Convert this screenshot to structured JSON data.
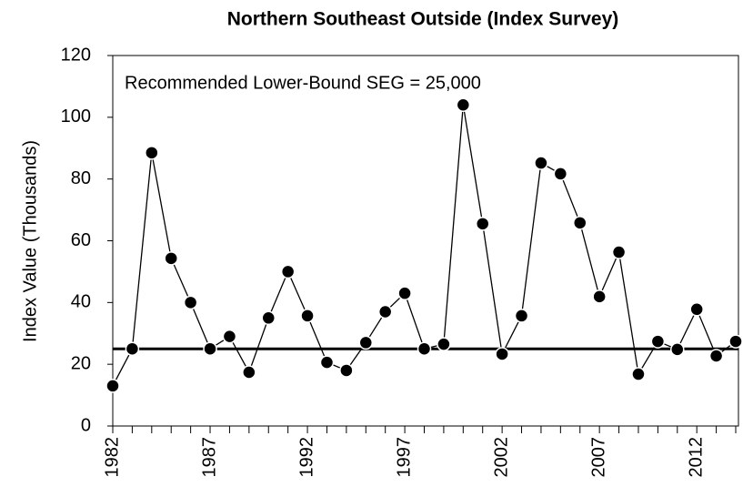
{
  "chart_data": {
    "type": "line",
    "title": "Northern Southeast Outside (Index Survey)",
    "y_label": "Index Value (Thousands)",
    "annotation": "Recommended Lower-Bound SEG = 25,000",
    "reference_line": 25,
    "x": [
      1982,
      1983,
      1984,
      1985,
      1986,
      1987,
      1988,
      1989,
      1990,
      1991,
      1992,
      1993,
      1994,
      1995,
      1996,
      1997,
      1998,
      1999,
      2000,
      2001,
      2002,
      2003,
      2004,
      2005,
      2006,
      2007,
      2008,
      2009,
      2010,
      2011,
      2012,
      2013,
      2014
    ],
    "series": [
      {
        "color": "#000000",
        "values": [
          13,
          25,
          88.5,
          54.3,
          40,
          25,
          29,
          17.4,
          35,
          50,
          35.7,
          20.6,
          18,
          27,
          37,
          43,
          25,
          26.5,
          104,
          65.5,
          23.3,
          35.7,
          85.2,
          81.7,
          65.8,
          41.9,
          56.3,
          16.8,
          27.4,
          24.8,
          37.8,
          22.7,
          27.4
        ]
      }
    ],
    "xlim": [
      1982,
      2014
    ],
    "xticks": [
      1982,
      1987,
      1992,
      1997,
      2002,
      2007,
      2012
    ],
    "ylim": [
      0,
      120
    ],
    "yticks": [
      0,
      20,
      40,
      60,
      80,
      100,
      120
    ]
  }
}
